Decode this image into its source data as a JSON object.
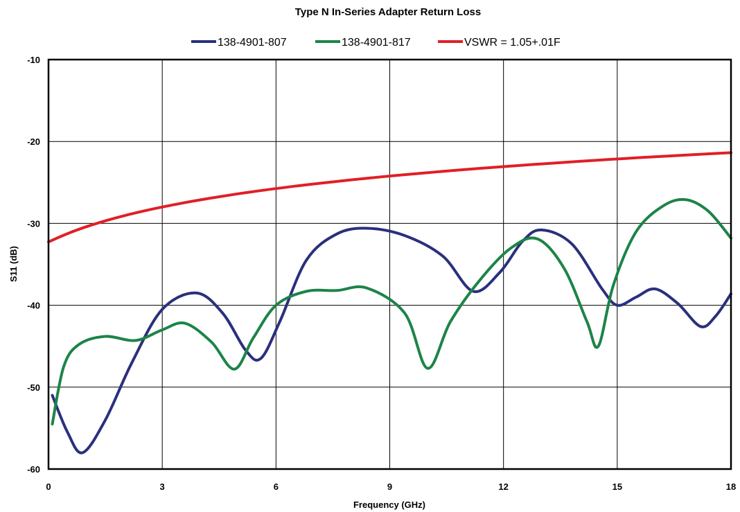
{
  "chart_data": {
    "type": "line",
    "title": "Type N In-Series Adapter Return Loss",
    "xlabel": "Frequency (GHz)",
    "ylabel": "S11 (dB)",
    "xlim": [
      0,
      18
    ],
    "ylim": [
      -60,
      -10
    ],
    "xticks": [
      "0",
      "3",
      "6",
      "9",
      "12",
      "15",
      "18"
    ],
    "yticks": [
      "-10",
      "-20",
      "-30",
      "-40",
      "-50",
      "-60"
    ],
    "grid": true,
    "legend_position": "top",
    "series": [
      {
        "name": "138-4901-807",
        "color": "#2b2f7d",
        "x": [
          0.1,
          0.5,
          0.9,
          1.5,
          2.2,
          3.0,
          3.9,
          4.6,
          5.2,
          5.6,
          6.1,
          6.8,
          7.6,
          8.4,
          9.4,
          10.4,
          11.2,
          11.9,
          12.5,
          13.0,
          13.8,
          14.6,
          15.0,
          15.5,
          16.0,
          16.6,
          17.2,
          17.6,
          18.0
        ],
        "values": [
          -51,
          -55.5,
          -58,
          -54,
          -47,
          -40.5,
          -38.5,
          -41,
          -45.5,
          -46.5,
          -42,
          -34.5,
          -31.3,
          -30.6,
          -31.5,
          -34,
          -38.3,
          -36,
          -32.2,
          -30.8,
          -32.5,
          -38,
          -40,
          -39,
          -38,
          -39.8,
          -42.6,
          -41.3,
          -38.6
        ]
      },
      {
        "name": "138-4901-817",
        "color": "#1c8447",
        "x": [
          0.1,
          0.4,
          0.8,
          1.5,
          2.3,
          3.0,
          3.6,
          4.3,
          4.9,
          5.4,
          6.0,
          6.8,
          7.6,
          8.4,
          9.4,
          10.0,
          10.6,
          11.4,
          12.2,
          12.9,
          13.6,
          14.2,
          14.5,
          14.9,
          15.5,
          16.2,
          16.8,
          17.4,
          18.0
        ],
        "values": [
          -54.5,
          -47.5,
          -44.8,
          -43.8,
          -44.3,
          -43,
          -42.2,
          -44.5,
          -47.8,
          -44,
          -40,
          -38.3,
          -38.2,
          -37.9,
          -41,
          -47.7,
          -42,
          -36.8,
          -33,
          -31.9,
          -35.5,
          -42,
          -45,
          -37.5,
          -31,
          -27.9,
          -27.1,
          -28.5,
          -31.8
        ]
      },
      {
        "name": "VSWR = 1.05+.01F",
        "color": "#e01f26",
        "x": [
          0,
          0.5,
          1,
          1.5,
          2,
          2.5,
          3,
          3.5,
          4,
          4.5,
          5,
          5.5,
          6,
          6.5,
          7,
          7.5,
          8,
          8.5,
          9,
          9.5,
          10,
          10.5,
          11,
          11.5,
          12,
          12.5,
          13,
          13.5,
          14,
          14.5,
          15,
          15.5,
          16,
          16.5,
          17,
          17.5,
          18
        ],
        "values": [
          -32.26,
          -31.25,
          -30.41,
          -29.69,
          -29.06,
          -28.5,
          -28.0,
          -27.55,
          -27.13,
          -26.75,
          -26.39,
          -26.06,
          -25.75,
          -25.46,
          -25.19,
          -24.93,
          -24.68,
          -24.45,
          -24.22,
          -24.01,
          -23.81,
          -23.61,
          -23.42,
          -23.24,
          -23.07,
          -22.9,
          -22.74,
          -22.58,
          -22.43,
          -22.28,
          -22.14,
          -22.0,
          -21.87,
          -21.74,
          -21.61,
          -21.49,
          -21.37
        ]
      }
    ]
  }
}
